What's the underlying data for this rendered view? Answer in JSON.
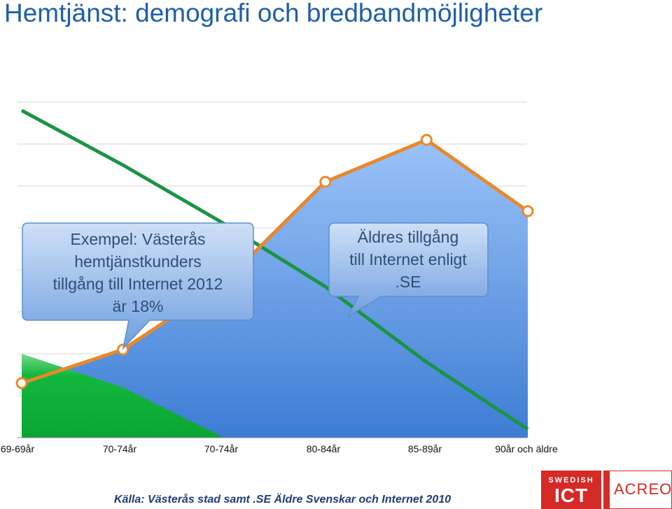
{
  "title": "Hemtjänst: demografi och bredbandmöjligheter",
  "chart_data": {
    "type": "area",
    "categories": [
      "69-69år",
      "70-74år",
      "70-74år",
      "80-84år",
      "85-89år",
      "90år och äldre"
    ],
    "series": [
      {
        "values": [
          13,
          21,
          37,
          61,
          71,
          54
        ]
      },
      {
        "values": [
          20,
          12,
          0,
          0,
          0,
          0
        ]
      },
      {
        "values": [
          78,
          65,
          51,
          36,
          18,
          2
        ]
      }
    ],
    "ylim": [
      0,
      80
    ],
    "grid": true,
    "colors": {
      "blue_area": "#5a90e0",
      "green_area": "#10b23a",
      "orange_line": "#e8892c",
      "green_line": "#1a9444"
    }
  },
  "callouts": [
    {
      "text_lines": [
        "Exempel: Västerås",
        "hemtjänstkunders",
        "tillgång till Internet 2012",
        "är 18%"
      ]
    },
    {
      "text_lines": [
        "Äldres tillgång",
        "till Internet enligt",
        ".SE"
      ]
    }
  ],
  "source": "Källa: Västerås stad samt .SE Äldre Svenskar och Internet 2010",
  "logos": {
    "ict_small": "SWEDISH",
    "ict_big": "ICT",
    "acreo": "ACREO"
  }
}
